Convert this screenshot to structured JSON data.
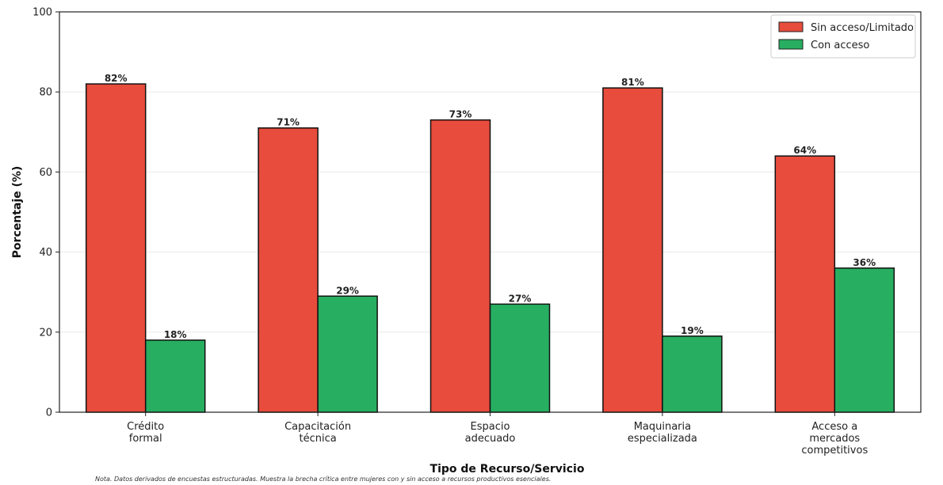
{
  "chart_data": {
    "type": "bar",
    "categories": [
      [
        "Crédito",
        "formal"
      ],
      [
        "Capacitación",
        "técnica"
      ],
      [
        "Espacio",
        "adecuado"
      ],
      [
        "Maquinaria",
        "especializada"
      ],
      [
        "Acceso a",
        "mercados",
        "competitivos"
      ]
    ],
    "series": [
      {
        "name": "Sin acceso/Limitado",
        "color": "#e74c3c",
        "values": [
          82,
          71,
          73,
          81,
          64
        ],
        "labels": [
          "82%",
          "71%",
          "73%",
          "81%",
          "64%"
        ]
      },
      {
        "name": "Con acceso",
        "color": "#27ae60",
        "values": [
          18,
          29,
          27,
          19,
          36
        ],
        "labels": [
          "18%",
          "29%",
          "27%",
          "19%",
          "36%"
        ]
      }
    ],
    "xlabel": "Tipo de Recurso/Servicio",
    "ylabel": "Porcentaje (%)",
    "ylim": [
      0,
      100
    ],
    "yticks": [
      "0",
      "20",
      "40",
      "60",
      "80",
      "100"
    ],
    "grid": "y",
    "legend_position": "top-right",
    "note": "Nota. Datos derivados de encuestas estructuradas. Muestra la brecha crítica entre mujeres con y sin acceso a recursos productivos esenciales."
  }
}
